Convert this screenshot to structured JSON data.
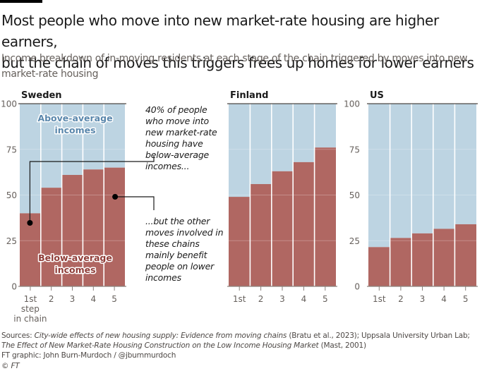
{
  "header": {
    "title_line1": "Most people who move into new market-rate housing are higher earners,",
    "title_line2": "but the chain of moves this triggers frees up homes for lower earners",
    "subtitle": "Income breakdown of in-moving residents at each stage of the chain triggered by moves into new market-rate housing"
  },
  "annotations": {
    "top": "40% of people who move into new market-rate housing have below-average incomes...",
    "bottom": "...but the other moves involved in these chains mainly benefit people on lower incomes"
  },
  "labels": {
    "above": [
      "Above-average",
      "incomes"
    ],
    "below": [
      "Below-average",
      "incomes"
    ]
  },
  "colors": {
    "above": "#bdd4e2",
    "below": "#b06762",
    "axis": "#66605c",
    "text": "#1a1a1a"
  },
  "chart_data": [
    {
      "type": "bar",
      "stacked": true,
      "title": "Sweden",
      "categories": [
        "1st step in chain",
        "2",
        "3",
        "4",
        "5"
      ],
      "series": [
        {
          "name": "Below-average incomes",
          "values": [
            40,
            54,
            61,
            64,
            65
          ]
        },
        {
          "name": "Above-average incomes",
          "values": [
            60,
            46,
            39,
            36,
            35
          ]
        }
      ],
      "ylim": [
        0,
        100
      ],
      "yticks": [
        0,
        25,
        50,
        75,
        100
      ],
      "grid": true
    },
    {
      "type": "bar",
      "stacked": true,
      "title": "Finland",
      "categories": [
        "1st",
        "2",
        "3",
        "4",
        "5"
      ],
      "series": [
        {
          "name": "Below-average incomes",
          "values": [
            49,
            56,
            63,
            68,
            76
          ]
        },
        {
          "name": "Above-average incomes",
          "values": [
            51,
            44,
            37,
            32,
            24
          ]
        }
      ],
      "ylim": [
        0,
        100
      ],
      "yticks": [
        0,
        25,
        50,
        75,
        100
      ],
      "grid": true
    },
    {
      "type": "bar",
      "stacked": true,
      "title": "US",
      "categories": [
        "1st",
        "2",
        "3",
        "4",
        "5"
      ],
      "series": [
        {
          "name": "Below-average incomes",
          "values": [
            21.5,
            26.5,
            29,
            31.5,
            34
          ]
        },
        {
          "name": "Above-average incomes",
          "values": [
            78.5,
            73.5,
            71,
            68.5,
            66
          ]
        }
      ],
      "ylim": [
        0,
        100
      ],
      "yticks": [
        0,
        25,
        50,
        75,
        100
      ],
      "grid": true
    }
  ],
  "footer": {
    "sources_prefix": "Sources: ",
    "source1_title": "City-wide effects of new housing supply: Evidence from moving chains",
    "source1_rest": " (Bratu et al., 2023); Uppsala University Urban Lab;",
    "source2_title": "The Effect of New Market-Rate Housing Construction on the Low Income Housing Market",
    "source2_rest": " (Mast, 2001)",
    "credit": "FT graphic: John Burn-Murdoch / @jburnmurdoch",
    "copyright": "© FT"
  }
}
